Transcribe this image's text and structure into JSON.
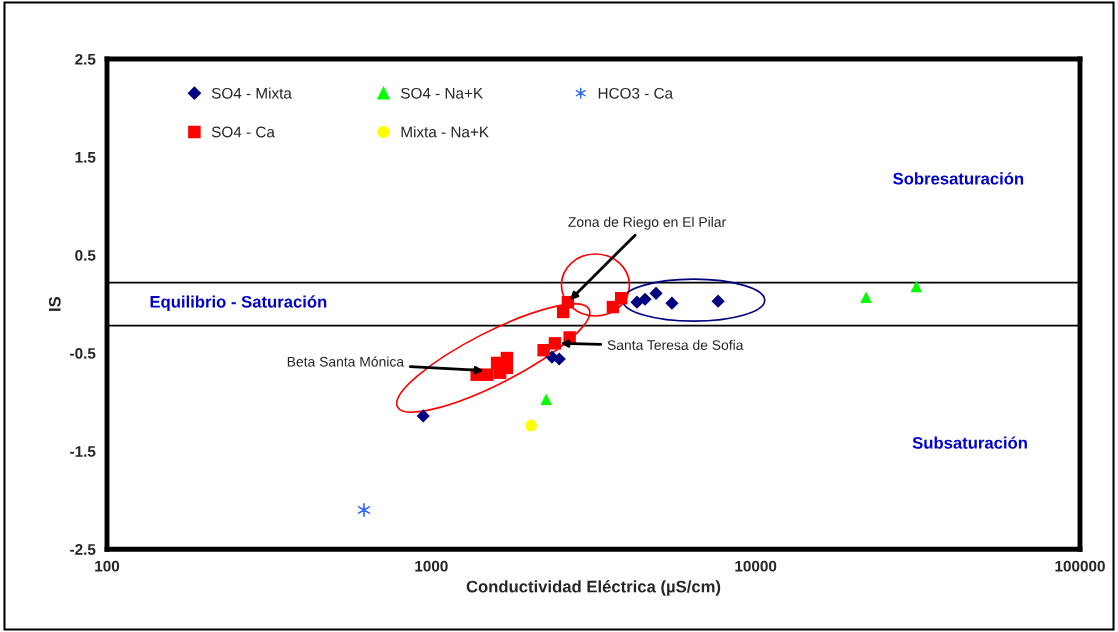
{
  "chart_data": {
    "type": "scatter",
    "xlabel": "Conductividad Eléctrica (µS/cm)",
    "ylabel": "IS",
    "log": "x",
    "xlim": [
      100,
      100000
    ],
    "xticks": [
      100,
      1000,
      10000,
      100000
    ],
    "ylim": [
      -2.5,
      2.5
    ],
    "yticks": [
      2.5,
      1.5,
      0.5,
      -0.5,
      -1.5,
      -2.5
    ],
    "grid": false,
    "legend": "top left",
    "series": [
      {
        "name": "SO4 - Mixta",
        "color": "#000080",
        "marker": "diamond",
        "x": [
          944,
          2355,
          2480,
          4306,
          4560,
          4930,
          5520,
          7660
        ],
        "values": [
          -1.14,
          -0.54,
          -0.56,
          0.02,
          0.05,
          0.11,
          0.01,
          0.03
        ]
      },
      {
        "name": "SO4 - Ca",
        "color": "#ff0000",
        "marker": "square",
        "x": [
          2637,
          2550,
          3630,
          3850,
          2670,
          2405,
          2220,
          1710,
          1710,
          1595,
          1490,
          1380,
          1630
        ],
        "values": [
          0.02,
          -0.08,
          -0.03,
          0.06,
          -0.34,
          -0.4,
          -0.47,
          -0.55,
          -0.65,
          -0.6,
          -0.72,
          -0.72,
          -0.7
        ]
      },
      {
        "name": "SO4 - Na+K",
        "color": "#00ff00",
        "marker": "triangle",
        "x": [
          21900,
          31300,
          2260
        ],
        "values": [
          0.07,
          0.18,
          -0.97
        ]
      },
      {
        "name": "Mixta - Na+K",
        "color": "#ffff00",
        "marker": "circle",
        "x": [
          2030
        ],
        "values": [
          -1.24
        ]
      },
      {
        "name": "HCO3 - Ca",
        "color": "#3366ff",
        "marker": "cross",
        "x": [
          620
        ],
        "values": [
          -2.1
        ]
      }
    ],
    "ref_lines": [
      {
        "axis": "y",
        "value": 0.22,
        "color": "#000000"
      },
      {
        "axis": "y",
        "value": -0.22,
        "color": "#000000"
      }
    ],
    "annotations": [
      "Sobresaturación",
      "Equilibrio - Saturación",
      "Subsaturación",
      {
        "text": "Zona de Riego en El Pilar",
        "x": 2637,
        "y": 0.02
      },
      {
        "text": "Santa Teresa de Sofia",
        "x": 2450,
        "y": -0.4
      },
      {
        "text": "Beta Santa Mónica",
        "x": 1480,
        "y": -0.68
      }
    ]
  }
}
